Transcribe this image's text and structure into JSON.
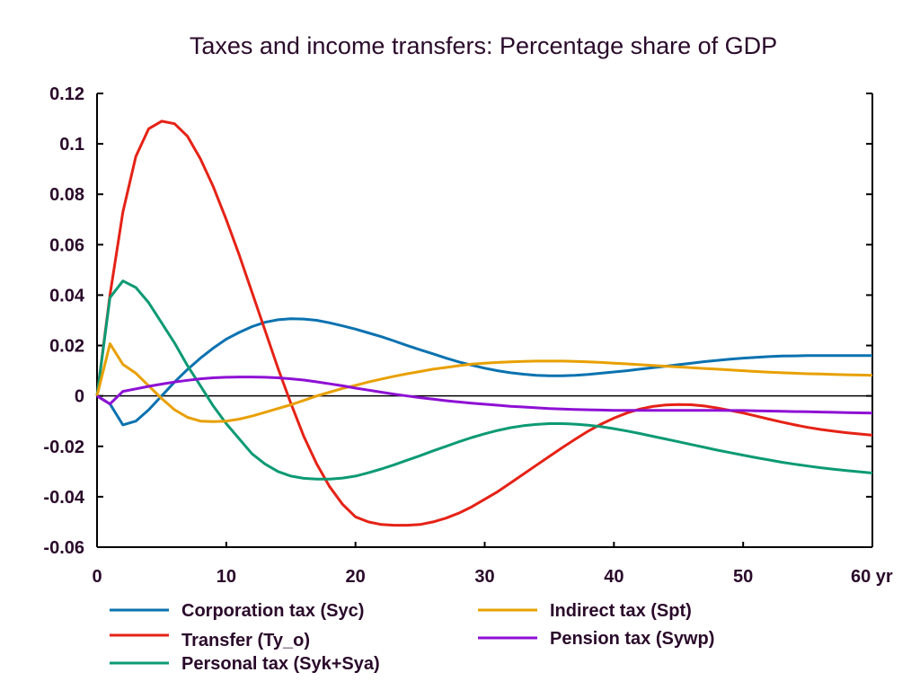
{
  "chart_data": {
    "type": "line",
    "title": "Taxes and income transfers: Percentage share of GDP",
    "xlabel": "",
    "ylabel": "",
    "x_unit_suffix": "yr",
    "xlim": [
      0,
      60
    ],
    "ylim": [
      -0.06,
      0.12
    ],
    "x_ticks": [
      0,
      10,
      20,
      30,
      40,
      50,
      60
    ],
    "x_tick_labels": [
      "0",
      "10",
      "20",
      "30",
      "40",
      "50",
      "60 yr"
    ],
    "y_ticks": [
      -0.06,
      -0.04,
      -0.02,
      0,
      0.02,
      0.04,
      0.06,
      0.08,
      0.1,
      0.12
    ],
    "y_tick_labels": [
      "-0.06",
      "-0.04",
      "-0.02",
      "0",
      "0.02",
      "0.04",
      "0.06",
      "0.08",
      "0.1",
      "0.12"
    ],
    "grid": false,
    "zero_line": true,
    "legend_position": "bottom",
    "x": [
      0,
      1,
      2,
      3,
      4,
      5,
      6,
      7,
      8,
      9,
      10,
      11,
      12,
      13,
      14,
      15,
      16,
      17,
      18,
      19,
      20,
      21,
      22,
      23,
      24,
      25,
      26,
      27,
      28,
      29,
      30,
      31,
      32,
      33,
      34,
      35,
      36,
      37,
      38,
      39,
      40,
      41,
      42,
      43,
      44,
      45,
      46,
      47,
      48,
      49,
      50,
      51,
      52,
      53,
      54,
      55,
      56,
      57,
      58,
      59,
      60
    ],
    "series": [
      {
        "name": "Corporation tax (Syc)",
        "color": "#0a72b0",
        "values": [
          0,
          -0.0032,
          -0.0115,
          -0.01,
          -0.0055,
          0.0,
          0.0055,
          0.0105,
          0.015,
          0.019,
          0.0225,
          0.0252,
          0.0275,
          0.0292,
          0.0302,
          0.0306,
          0.0305,
          0.03,
          0.029,
          0.0278,
          0.0265,
          0.025,
          0.0235,
          0.0218,
          0.02,
          0.0183,
          0.0167,
          0.015,
          0.0135,
          0.0122,
          0.011,
          0.01,
          0.0092,
          0.0086,
          0.0082,
          0.008,
          0.008,
          0.0082,
          0.0085,
          0.009,
          0.0095,
          0.01,
          0.0106,
          0.0112,
          0.0118,
          0.0124,
          0.013,
          0.0136,
          0.0141,
          0.0146,
          0.015,
          0.0153,
          0.0156,
          0.0158,
          0.0159,
          0.016,
          0.016,
          0.016,
          0.016,
          0.016,
          0.016
        ]
      },
      {
        "name": "Transfer (Ty_o)",
        "color": "#e52216",
        "values": [
          0,
          0.04,
          0.073,
          0.095,
          0.106,
          0.109,
          0.108,
          0.103,
          0.094,
          0.083,
          0.07,
          0.056,
          0.041,
          0.026,
          0.011,
          -0.003,
          -0.016,
          -0.027,
          -0.036,
          -0.043,
          -0.048,
          -0.05,
          -0.051,
          -0.0513,
          -0.0513,
          -0.051,
          -0.05,
          -0.0485,
          -0.0465,
          -0.044,
          -0.041,
          -0.038,
          -0.0345,
          -0.031,
          -0.0275,
          -0.024,
          -0.0205,
          -0.0172,
          -0.014,
          -0.0112,
          -0.0088,
          -0.0068,
          -0.0052,
          -0.0042,
          -0.0036,
          -0.0034,
          -0.0035,
          -0.004,
          -0.0048,
          -0.0058,
          -0.0068,
          -0.008,
          -0.0092,
          -0.0104,
          -0.0115,
          -0.0125,
          -0.0133,
          -0.014,
          -0.0146,
          -0.0151,
          -0.0156
        ]
      },
      {
        "name": "Personal tax (Syk+Sya)",
        "color": "#0c9a74",
        "values": [
          0,
          0.039,
          0.0456,
          0.043,
          0.037,
          0.029,
          0.021,
          0.012,
          0.004,
          -0.004,
          -0.011,
          -0.017,
          -0.023,
          -0.027,
          -0.03,
          -0.0318,
          -0.0327,
          -0.033,
          -0.033,
          -0.0326,
          -0.0318,
          -0.0305,
          -0.029,
          -0.0273,
          -0.0255,
          -0.0237,
          -0.0218,
          -0.02,
          -0.0182,
          -0.0165,
          -0.015,
          -0.0137,
          -0.0126,
          -0.0118,
          -0.0113,
          -0.011,
          -0.011,
          -0.0112,
          -0.0116,
          -0.0122,
          -0.013,
          -0.0139,
          -0.0149,
          -0.016,
          -0.0171,
          -0.0182,
          -0.0193,
          -0.0204,
          -0.0215,
          -0.0225,
          -0.0235,
          -0.0245,
          -0.0254,
          -0.0263,
          -0.0271,
          -0.0278,
          -0.0285,
          -0.0291,
          -0.0296,
          -0.0301,
          -0.0306
        ]
      },
      {
        "name": "Indirect tax (Spt)",
        "color": "#e8a000",
        "values": [
          0,
          0.0207,
          0.0125,
          0.009,
          0.004,
          -0.001,
          -0.0055,
          -0.0085,
          -0.01,
          -0.0102,
          -0.01,
          -0.0092,
          -0.008,
          -0.0065,
          -0.005,
          -0.0035,
          -0.0018,
          0.0,
          0.0015,
          0.003,
          0.0042,
          0.0055,
          0.0067,
          0.0078,
          0.0088,
          0.0097,
          0.0106,
          0.0113,
          0.012,
          0.0126,
          0.013,
          0.0133,
          0.0135,
          0.0137,
          0.0138,
          0.0138,
          0.0138,
          0.0137,
          0.0135,
          0.0133,
          0.013,
          0.0127,
          0.0124,
          0.0121,
          0.0118,
          0.0115,
          0.0112,
          0.0109,
          0.0106,
          0.0103,
          0.01,
          0.0097,
          0.0094,
          0.0092,
          0.009,
          0.0088,
          0.0087,
          0.0085,
          0.0084,
          0.0083,
          0.0082
        ]
      },
      {
        "name": "Pension tax (Sywp)",
        "color": "#8e10d4",
        "values": [
          0,
          -0.0032,
          0.0018,
          0.0028,
          0.0038,
          0.0047,
          0.0055,
          0.0062,
          0.0068,
          0.0072,
          0.0074,
          0.0075,
          0.0075,
          0.0074,
          0.0072,
          0.0068,
          0.0063,
          0.0056,
          0.0048,
          0.004,
          0.0031,
          0.0023,
          0.0015,
          0.0007,
          0.0,
          -0.0007,
          -0.0013,
          -0.0019,
          -0.0024,
          -0.0029,
          -0.0033,
          -0.0037,
          -0.0041,
          -0.0044,
          -0.0047,
          -0.005,
          -0.0052,
          -0.0054,
          -0.0055,
          -0.0056,
          -0.0057,
          -0.0057,
          -0.0057,
          -0.0057,
          -0.0057,
          -0.0057,
          -0.0057,
          -0.0057,
          -0.0057,
          -0.0058,
          -0.0058,
          -0.0059,
          -0.006,
          -0.0061,
          -0.0062,
          -0.0063,
          -0.0064,
          -0.0065,
          -0.0066,
          -0.0067,
          -0.0068
        ]
      }
    ],
    "legend_order": [
      0,
      3,
      1,
      4,
      2
    ]
  }
}
